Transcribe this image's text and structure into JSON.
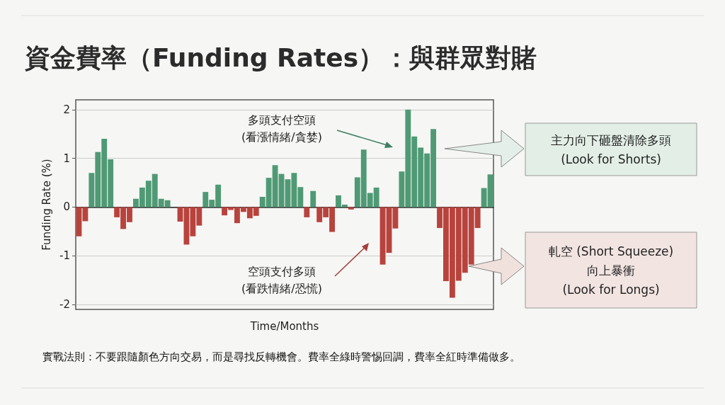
{
  "chart_data": {
    "type": "bar",
    "title": "資金費率（Funding Rates）：與群眾對賭",
    "xlabel": "Time/Months",
    "ylabel": "Funding Rate (%)",
    "categories": [
      null,
      null,
      null,
      null,
      null,
      null,
      null,
      null,
      null,
      null,
      null,
      null,
      null,
      null,
      null,
      null,
      null,
      null,
      null,
      null,
      null,
      null,
      null,
      null,
      null,
      null,
      null,
      null,
      null,
      null,
      null,
      null,
      null,
      null,
      null,
      null,
      null,
      null,
      null,
      null,
      null,
      null,
      null,
      null,
      null,
      null,
      null,
      null,
      null,
      null,
      null,
      null,
      null,
      null,
      null,
      null,
      null,
      null,
      null,
      null,
      null,
      null,
      null,
      null,
      null,
      null
    ],
    "values": [
      -0.6,
      -0.29,
      0.7,
      1.13,
      1.4,
      0.98,
      -0.21,
      -0.45,
      -0.31,
      0.17,
      0.4,
      0.54,
      0.68,
      0.17,
      0.14,
      null,
      -0.3,
      -0.77,
      -0.6,
      -0.38,
      0.31,
      0.15,
      0.46,
      -0.17,
      -0.06,
      -0.33,
      -0.1,
      -0.23,
      -0.18,
      0.21,
      0.6,
      0.86,
      0.68,
      0.57,
      0.7,
      0.41,
      -0.21,
      0.33,
      -0.31,
      -0.21,
      -0.51,
      0.24,
      0.05,
      -0.05,
      0.61,
      1.18,
      0.29,
      0.4,
      -1.18,
      -0.94,
      -0.44,
      0.73,
      2.0,
      1.45,
      1.22,
      1.1,
      1.6,
      -0.43,
      -1.52,
      -1.86,
      -1.51,
      -1.35,
      -1.18,
      -0.43,
      0.39,
      0.67
    ],
    "colors": [
      "#b8433d",
      "#b8433d",
      "#4f9a75",
      "#4f9a75",
      "#4f9a75",
      "#4f9a75",
      "#b8433d",
      "#b8433d",
      "#b8433d",
      "#4f9a75",
      "#4f9a75",
      "#4f9a75",
      "#4f9a75",
      "#4f9a75",
      "#4f9a75",
      "#4f9a75",
      "#b8433d",
      "#b8433d",
      "#b8433d",
      "#b8433d",
      "#4f9a75",
      "#4f9a75",
      "#4f9a75",
      "#b8433d",
      "#b8433d",
      "#b8433d",
      "#b8433d",
      "#b8433d",
      "#b8433d",
      "#4f9a75",
      "#4f9a75",
      "#4f9a75",
      "#4f9a75",
      "#4f9a75",
      "#4f9a75",
      "#4f9a75",
      "#b8433d",
      "#4f9a75",
      "#b8433d",
      "#b8433d",
      "#b8433d",
      "#4f9a75",
      "#4f9a75",
      "#b8433d",
      "#4f9a75",
      "#4f9a75",
      "#4f9a75",
      "#4f9a75",
      "#b8433d",
      "#b8433d",
      "#b8433d",
      "#4f9a75",
      "#4f9a75",
      "#4f9a75",
      "#4f9a75",
      "#4f9a75",
      "#4f9a75",
      "#b8433d",
      "#b8433d",
      "#b8433d",
      "#b8433d",
      "#b8433d",
      "#b8433d",
      "#b8433d",
      "#4f9a75",
      "#4f9a75"
    ],
    "ylim": [
      -2.1,
      2.2
    ],
    "yticks": [
      -2,
      -1,
      0,
      1,
      2
    ],
    "grid": "y",
    "annotations": [
      "多頭支付空頭\n(看漲情緒/貪婪)",
      "空頭支付多頭\n(看跌情緒/恐慌)",
      "主力向下砸盤清除多頭\n(Look for Shorts)",
      "軋空 (Short Squeeze)\n向上暴衝\n(Look for Longs)",
      "實戰法則：不要跟隨顏色方向交易，而是尋找反轉機會。費率全綠時警惕回調，費率全紅時準備做多。"
    ]
  }
}
